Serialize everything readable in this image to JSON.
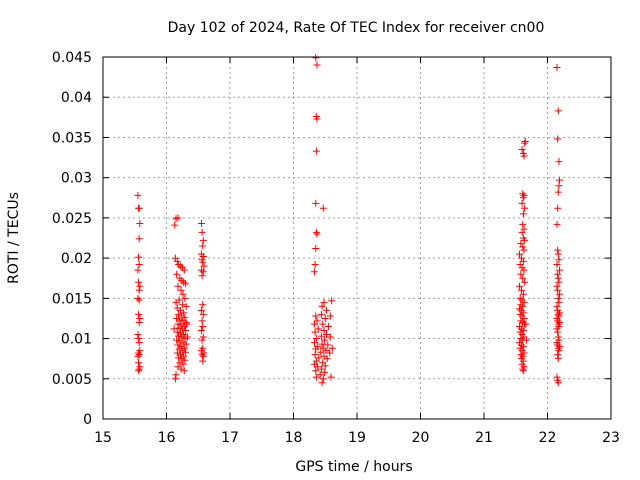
{
  "chart_data": {
    "type": "scatter",
    "title": "Day 102 of 2024, Rate Of TEC Index for receiver cn00",
    "xlabel": "GPS time / hours",
    "ylabel": "ROTI / TECUs",
    "xlim": [
      15,
      23
    ],
    "ylim": [
      0,
      0.045
    ],
    "xticks": [
      15,
      16,
      17,
      18,
      19,
      20,
      21,
      22,
      23
    ],
    "xtick_labels": [
      "15",
      "16",
      "17",
      "18",
      "19",
      "20",
      "21",
      "22",
      "23"
    ],
    "yticks": [
      0,
      0.005,
      0.01,
      0.015,
      0.02,
      0.025,
      0.03,
      0.035,
      0.04,
      0.045
    ],
    "ytick_labels": [
      "0",
      "0.005",
      "0.01",
      "0.015",
      "0.02",
      "0.025",
      "0.03",
      "0.035",
      "0.04",
      "0.045"
    ],
    "grid": true,
    "marker": "+",
    "color": "#ff0000",
    "series": [
      {
        "name": "ROTI",
        "points": [
          [
            15.55,
            0.0278
          ],
          [
            15.56,
            0.0262
          ],
          [
            15.57,
            0.0262
          ],
          [
            15.58,
            0.0243
          ],
          [
            15.57,
            0.0224
          ],
          [
            15.56,
            0.0201
          ],
          [
            15.57,
            0.0192
          ],
          [
            15.55,
            0.0185
          ],
          [
            15.56,
            0.017
          ],
          [
            15.58,
            0.0165
          ],
          [
            15.57,
            0.016
          ],
          [
            15.55,
            0.015
          ],
          [
            15.57,
            0.0148
          ],
          [
            15.56,
            0.013
          ],
          [
            15.58,
            0.0125
          ],
          [
            15.57,
            0.012
          ],
          [
            15.55,
            0.0105
          ],
          [
            15.56,
            0.01
          ],
          [
            15.57,
            0.0095
          ],
          [
            15.58,
            0.0085
          ],
          [
            15.56,
            0.0082
          ],
          [
            15.57,
            0.008
          ],
          [
            15.55,
            0.0078
          ],
          [
            15.56,
            0.007
          ],
          [
            15.58,
            0.0065
          ],
          [
            15.57,
            0.0062
          ],
          [
            15.56,
            0.006
          ],
          [
            16.15,
            0.0249
          ],
          [
            16.13,
            0.0241
          ],
          [
            16.18,
            0.025
          ],
          [
            16.14,
            0.02
          ],
          [
            16.17,
            0.0196
          ],
          [
            16.19,
            0.0192
          ],
          [
            16.22,
            0.019
          ],
          [
            16.25,
            0.0188
          ],
          [
            16.28,
            0.0185
          ],
          [
            16.16,
            0.018
          ],
          [
            16.21,
            0.0175
          ],
          [
            16.24,
            0.0172
          ],
          [
            16.27,
            0.017
          ],
          [
            16.3,
            0.0168
          ],
          [
            16.18,
            0.0165
          ],
          [
            16.23,
            0.016
          ],
          [
            16.26,
            0.0155
          ],
          [
            16.29,
            0.015
          ],
          [
            16.2,
            0.0148
          ],
          [
            16.15,
            0.0145
          ],
          [
            16.25,
            0.0142
          ],
          [
            16.31,
            0.014
          ],
          [
            16.17,
            0.0138
          ],
          [
            16.22,
            0.0135
          ],
          [
            16.27,
            0.0132
          ],
          [
            16.19,
            0.013
          ],
          [
            16.24,
            0.0128
          ],
          [
            16.29,
            0.0126
          ],
          [
            16.16,
            0.0125
          ],
          [
            16.21,
            0.0123
          ],
          [
            16.26,
            0.0122
          ],
          [
            16.31,
            0.012
          ],
          [
            16.18,
            0.0118
          ],
          [
            16.23,
            0.0117
          ],
          [
            16.28,
            0.0115
          ],
          [
            16.2,
            0.0113
          ],
          [
            16.25,
            0.0112
          ],
          [
            16.3,
            0.011
          ],
          [
            16.17,
            0.0108
          ],
          [
            16.22,
            0.0107
          ],
          [
            16.27,
            0.0105
          ],
          [
            16.19,
            0.0103
          ],
          [
            16.24,
            0.0102
          ],
          [
            16.29,
            0.01
          ],
          [
            16.16,
            0.0098
          ],
          [
            16.21,
            0.0097
          ],
          [
            16.26,
            0.0095
          ],
          [
            16.31,
            0.0093
          ],
          [
            16.18,
            0.0092
          ],
          [
            16.23,
            0.009
          ],
          [
            16.28,
            0.0088
          ],
          [
            16.2,
            0.0087
          ],
          [
            16.25,
            0.0085
          ],
          [
            16.3,
            0.0083
          ],
          [
            16.17,
            0.0082
          ],
          [
            16.22,
            0.008
          ],
          [
            16.27,
            0.0078
          ],
          [
            16.19,
            0.0076
          ],
          [
            16.24,
            0.0075
          ],
          [
            16.29,
            0.0073
          ],
          [
            16.21,
            0.007
          ],
          [
            16.26,
            0.0068
          ],
          [
            16.18,
            0.0065
          ],
          [
            16.23,
            0.0062
          ],
          [
            16.28,
            0.006
          ],
          [
            16.15,
            0.0055
          ],
          [
            16.14,
            0.005
          ],
          [
            16.32,
            0.0118
          ],
          [
            16.33,
            0.0102
          ],
          [
            16.12,
            0.0112
          ],
          [
            16.55,
            0.0243
          ],
          [
            16.56,
            0.0232
          ],
          [
            16.58,
            0.0222
          ],
          [
            16.57,
            0.0215
          ],
          [
            16.55,
            0.0205
          ],
          [
            16.58,
            0.0202
          ],
          [
            16.56,
            0.0198
          ],
          [
            16.57,
            0.0195
          ],
          [
            16.59,
            0.019
          ],
          [
            16.55,
            0.0185
          ],
          [
            16.58,
            0.0183
          ],
          [
            16.56,
            0.0178
          ],
          [
            16.57,
            0.0142
          ],
          [
            16.55,
            0.0135
          ],
          [
            16.58,
            0.013
          ],
          [
            16.56,
            0.0122
          ],
          [
            16.57,
            0.0115
          ],
          [
            16.55,
            0.011
          ],
          [
            16.58,
            0.0102
          ],
          [
            16.56,
            0.0098
          ],
          [
            16.57,
            0.0088
          ],
          [
            16.55,
            0.0085
          ],
          [
            16.59,
            0.0082
          ],
          [
            16.56,
            0.008
          ],
          [
            16.58,
            0.0078
          ],
          [
            16.57,
            0.0072
          ],
          [
            18.35,
            0.0449
          ],
          [
            18.37,
            0.044
          ],
          [
            18.36,
            0.0376
          ],
          [
            18.37,
            0.0373
          ],
          [
            18.36,
            0.0333
          ],
          [
            18.35,
            0.0268
          ],
          [
            18.47,
            0.0262
          ],
          [
            18.36,
            0.0232
          ],
          [
            18.37,
            0.023
          ],
          [
            18.35,
            0.0212
          ],
          [
            18.34,
            0.0192
          ],
          [
            18.33,
            0.0183
          ],
          [
            18.48,
            0.0145
          ],
          [
            18.45,
            0.014
          ],
          [
            18.6,
            0.0147
          ],
          [
            18.52,
            0.0135
          ],
          [
            18.44,
            0.013
          ],
          [
            18.35,
            0.0128
          ],
          [
            18.58,
            0.0128
          ],
          [
            18.5,
            0.0125
          ],
          [
            18.37,
            0.0122
          ],
          [
            18.33,
            0.0118
          ],
          [
            18.46,
            0.0118
          ],
          [
            18.55,
            0.0115
          ],
          [
            18.39,
            0.0112
          ],
          [
            18.48,
            0.011
          ],
          [
            18.34,
            0.0108
          ],
          [
            18.52,
            0.0105
          ],
          [
            18.44,
            0.0103
          ],
          [
            18.58,
            0.0102
          ],
          [
            18.36,
            0.01
          ],
          [
            18.49,
            0.0098
          ],
          [
            18.33,
            0.0095
          ],
          [
            18.45,
            0.0093
          ],
          [
            18.54,
            0.0092
          ],
          [
            18.38,
            0.009
          ],
          [
            18.47,
            0.0088
          ],
          [
            18.35,
            0.0087
          ],
          [
            18.51,
            0.0085
          ],
          [
            18.43,
            0.0083
          ],
          [
            18.57,
            0.0082
          ],
          [
            18.34,
            0.008
          ],
          [
            18.48,
            0.0078
          ],
          [
            18.4,
            0.0076
          ],
          [
            18.53,
            0.0075
          ],
          [
            18.36,
            0.0072
          ],
          [
            18.46,
            0.007
          ],
          [
            18.33,
            0.0068
          ],
          [
            18.5,
            0.0066
          ],
          [
            18.38,
            0.0065
          ],
          [
            18.44,
            0.0062
          ],
          [
            18.35,
            0.006
          ],
          [
            18.49,
            0.0058
          ],
          [
            18.42,
            0.0055
          ],
          [
            18.36,
            0.0052
          ],
          [
            18.47,
            0.005
          ],
          [
            18.45,
            0.0045
          ],
          [
            18.59,
            0.0052
          ],
          [
            18.61,
            0.0088
          ],
          [
            21.65,
            0.0345
          ],
          [
            21.64,
            0.0343
          ],
          [
            21.6,
            0.0335
          ],
          [
            21.62,
            0.033
          ],
          [
            21.63,
            0.0327
          ],
          [
            21.61,
            0.028
          ],
          [
            21.63,
            0.0278
          ],
          [
            21.62,
            0.0275
          ],
          [
            21.6,
            0.0268
          ],
          [
            21.64,
            0.0262
          ],
          [
            21.62,
            0.0255
          ],
          [
            21.61,
            0.0242
          ],
          [
            21.63,
            0.0236
          ],
          [
            21.6,
            0.0232
          ],
          [
            21.62,
            0.0225
          ],
          [
            21.64,
            0.0222
          ],
          [
            21.58,
            0.0218
          ],
          [
            21.61,
            0.0214
          ],
          [
            21.63,
            0.021
          ],
          [
            21.56,
            0.0205
          ],
          [
            21.59,
            0.02
          ],
          [
            21.62,
            0.0196
          ],
          [
            21.57,
            0.0192
          ],
          [
            21.6,
            0.0188
          ],
          [
            21.63,
            0.0185
          ],
          [
            21.58,
            0.018
          ],
          [
            21.61,
            0.0175
          ],
          [
            21.64,
            0.017
          ],
          [
            21.56,
            0.0165
          ],
          [
            21.59,
            0.016
          ],
          [
            21.62,
            0.0155
          ],
          [
            21.57,
            0.015
          ],
          [
            21.6,
            0.0148
          ],
          [
            21.63,
            0.0145
          ],
          [
            21.58,
            0.0142
          ],
          [
            21.61,
            0.014
          ],
          [
            21.56,
            0.0137
          ],
          [
            21.59,
            0.0135
          ],
          [
            21.62,
            0.0132
          ],
          [
            21.57,
            0.013
          ],
          [
            21.6,
            0.0128
          ],
          [
            21.63,
            0.0125
          ],
          [
            21.58,
            0.0122
          ],
          [
            21.61,
            0.012
          ],
          [
            21.64,
            0.0118
          ],
          [
            21.56,
            0.0115
          ],
          [
            21.59,
            0.0112
          ],
          [
            21.62,
            0.011
          ],
          [
            21.57,
            0.0108
          ],
          [
            21.6,
            0.0105
          ],
          [
            21.63,
            0.0102
          ],
          [
            21.58,
            0.01
          ],
          [
            21.61,
            0.0098
          ],
          [
            21.56,
            0.0095
          ],
          [
            21.59,
            0.0092
          ],
          [
            21.62,
            0.009
          ],
          [
            21.57,
            0.0088
          ],
          [
            21.6,
            0.0085
          ],
          [
            21.63,
            0.0082
          ],
          [
            21.58,
            0.008
          ],
          [
            21.61,
            0.0078
          ],
          [
            21.59,
            0.0075
          ],
          [
            21.62,
            0.0072
          ],
          [
            21.6,
            0.0068
          ],
          [
            21.63,
            0.0065
          ],
          [
            21.61,
            0.0062
          ],
          [
            21.62,
            0.006
          ],
          [
            21.66,
            0.0118
          ],
          [
            21.67,
            0.0098
          ],
          [
            22.15,
            0.0437
          ],
          [
            22.17,
            0.0383
          ],
          [
            22.16,
            0.0348
          ],
          [
            22.18,
            0.032
          ],
          [
            22.19,
            0.0297
          ],
          [
            22.18,
            0.029
          ],
          [
            22.17,
            0.0282
          ],
          [
            22.16,
            0.0262
          ],
          [
            22.15,
            0.0242
          ],
          [
            22.16,
            0.021
          ],
          [
            22.17,
            0.0205
          ],
          [
            22.18,
            0.0198
          ],
          [
            22.15,
            0.0192
          ],
          [
            22.19,
            0.0185
          ],
          [
            22.16,
            0.018
          ],
          [
            22.17,
            0.0175
          ],
          [
            22.18,
            0.017
          ],
          [
            22.15,
            0.0165
          ],
          [
            22.16,
            0.016
          ],
          [
            22.19,
            0.0155
          ],
          [
            22.17,
            0.015
          ],
          [
            22.18,
            0.0145
          ],
          [
            22.15,
            0.014
          ],
          [
            22.16,
            0.0135
          ],
          [
            22.19,
            0.0132
          ],
          [
            22.17,
            0.013
          ],
          [
            22.18,
            0.0128
          ],
          [
            22.15,
            0.0125
          ],
          [
            22.16,
            0.0122
          ],
          [
            22.19,
            0.012
          ],
          [
            22.17,
            0.0118
          ],
          [
            22.18,
            0.0115
          ],
          [
            22.15,
            0.0112
          ],
          [
            22.16,
            0.0108
          ],
          [
            22.17,
            0.0102
          ],
          [
            22.18,
            0.0098
          ],
          [
            22.15,
            0.0095
          ],
          [
            22.16,
            0.0092
          ],
          [
            22.19,
            0.009
          ],
          [
            22.17,
            0.0088
          ],
          [
            22.18,
            0.0085
          ],
          [
            22.16,
            0.008
          ],
          [
            22.17,
            0.0075
          ],
          [
            22.15,
            0.0052
          ],
          [
            22.16,
            0.0048
          ],
          [
            22.17,
            0.0045
          ]
        ]
      }
    ]
  }
}
